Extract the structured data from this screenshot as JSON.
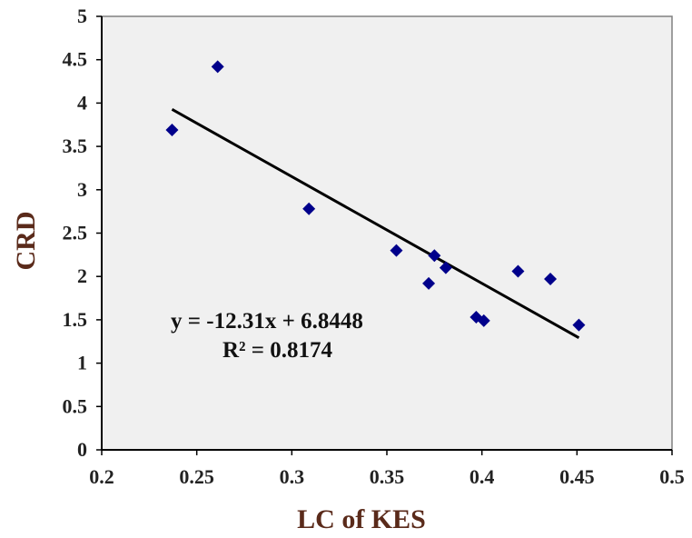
{
  "chart_data": {
    "type": "scatter",
    "xlabel": "LC of KES",
    "ylabel": "CRD",
    "xlim": [
      0.2,
      0.5
    ],
    "ylim": [
      0,
      5
    ],
    "x_ticks": [
      "0.2",
      "0.25",
      "0.3",
      "0.35",
      "0.4",
      "0.45",
      "0.5"
    ],
    "y_ticks": [
      "0",
      "0.5",
      "1",
      "1.5",
      "2",
      "2.5",
      "3",
      "3.5",
      "4",
      "4.5",
      "5"
    ],
    "grid": false,
    "legend": "none",
    "plot_background": "#f0f0f0",
    "series": [
      {
        "marker": "diamond",
        "color": "#00008b",
        "points": [
          {
            "x": 0.237,
            "y": 3.69
          },
          {
            "x": 0.261,
            "y": 4.42
          },
          {
            "x": 0.309,
            "y": 2.78
          },
          {
            "x": 0.355,
            "y": 2.3
          },
          {
            "x": 0.372,
            "y": 1.92
          },
          {
            "x": 0.375,
            "y": 2.24
          },
          {
            "x": 0.381,
            "y": 2.1
          },
          {
            "x": 0.397,
            "y": 1.53
          },
          {
            "x": 0.401,
            "y": 1.49
          },
          {
            "x": 0.419,
            "y": 2.06
          },
          {
            "x": 0.436,
            "y": 1.97
          },
          {
            "x": 0.451,
            "y": 1.44
          }
        ]
      }
    ],
    "trendline": {
      "type": "linear",
      "slope": -12.31,
      "intercept": 6.8448,
      "x_range": [
        0.237,
        0.451
      ],
      "color": "#000000"
    },
    "annotations": {
      "equation": "y = -12.31x + 6.8448",
      "r_squared": "R² = 0.8174"
    }
  }
}
